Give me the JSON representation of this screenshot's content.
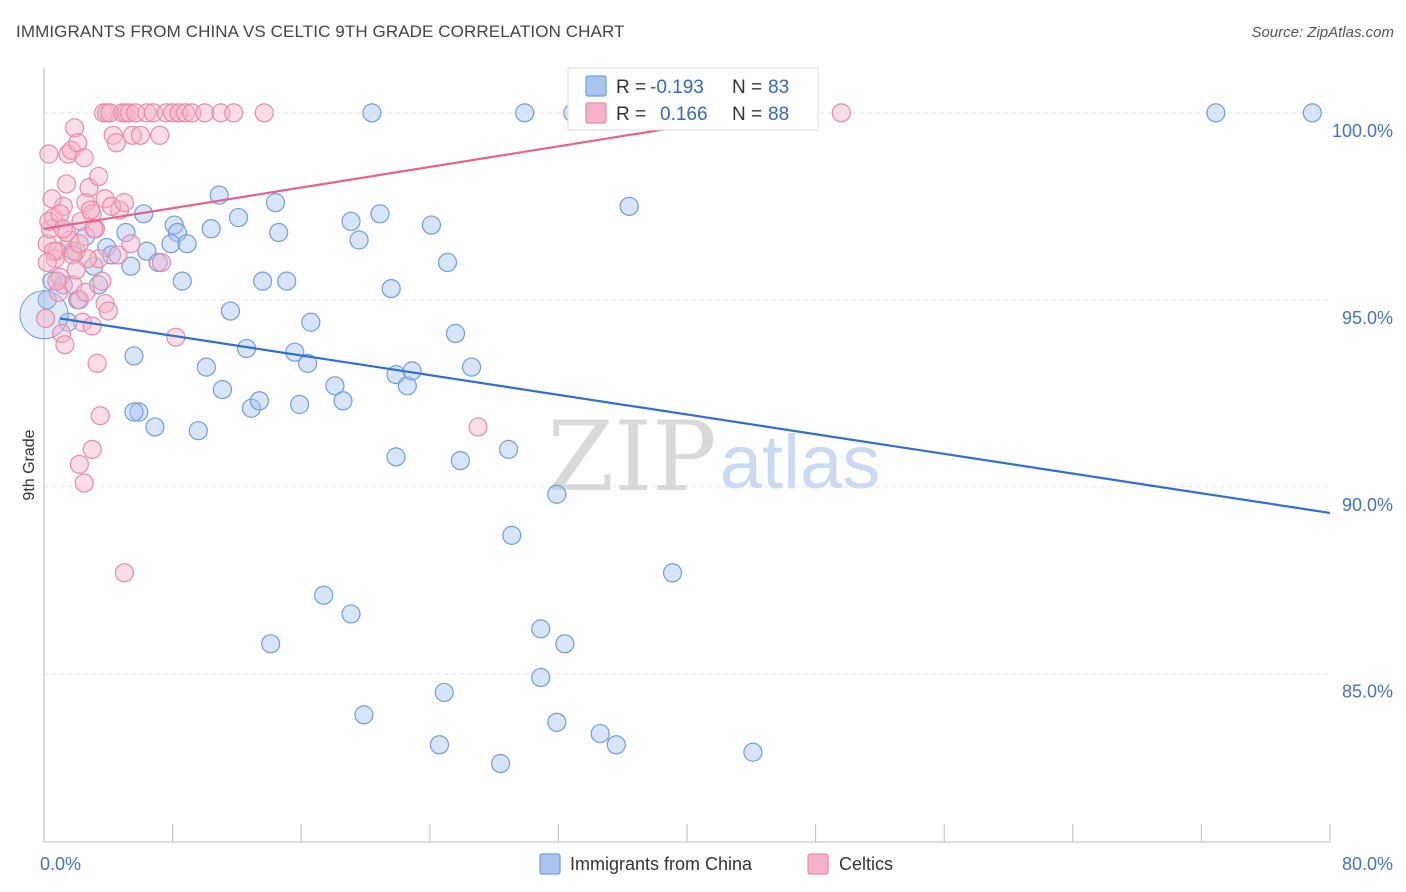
{
  "header": {
    "title": "IMMIGRANTS FROM CHINA VS CELTIC 9TH GRADE CORRELATION CHART",
    "source": "Source: ZipAtlas.com"
  },
  "watermark": {
    "zip": "ZIP",
    "atlas": "atlas"
  },
  "colors": {
    "china_fill": "#a8c4ef",
    "china_stroke": "#6f9de0",
    "china_line": "#2f6fd1",
    "celtic_fill": "#f4b3c8",
    "celtic_stroke": "#e98aa9",
    "celtic_line": "#e4628f",
    "tick_text": "#4472c4",
    "grid": "#e3e3e3"
  },
  "chart_data": {
    "type": "scatter",
    "title": "IMMIGRANTS FROM CHINA VS CELTIC 9TH GRADE CORRELATION CHART",
    "ylabel": "9th Grade",
    "xlim": [
      0,
      80
    ],
    "ylim": [
      80.5,
      101.2
    ],
    "x_ticks": [
      {
        "value": 0,
        "label": "0.0%"
      },
      {
        "value": 80,
        "label": "80.0%"
      }
    ],
    "x_minor_ticks": [
      8,
      16,
      24,
      32,
      40,
      48,
      56,
      64,
      72,
      80
    ],
    "y_ticks": [
      {
        "value": 100,
        "label": "100.0%"
      },
      {
        "value": 95,
        "label": "95.0%"
      },
      {
        "value": 90,
        "label": "90.0%"
      },
      {
        "value": 85,
        "label": "85.0%"
      }
    ],
    "grid": true,
    "legend": {
      "placement": "top-center",
      "rows": [
        {
          "r_label": "R =",
          "r_value": "-0.193",
          "n_label": "N =",
          "n_value": "83"
        },
        {
          "r_label": "R =",
          "r_value": "0.166",
          "n_label": "N =",
          "n_value": "88"
        }
      ]
    },
    "series": [
      {
        "name": "Immigrants from China",
        "trend": {
          "x": [
            1.0,
            80.0
          ],
          "y": [
            94.5,
            89.3
          ]
        },
        "points": [
          [
            0.5,
            95.5
          ],
          [
            1.2,
            95.4
          ],
          [
            1.5,
            94.4
          ],
          [
            2.6,
            96.7
          ],
          [
            3.1,
            95.9
          ],
          [
            3.4,
            95.4
          ],
          [
            3.9,
            96.4
          ],
          [
            4.2,
            96.2
          ],
          [
            5.1,
            96.8
          ],
          [
            5.4,
            95.9
          ],
          [
            6.2,
            97.3
          ],
          [
            5.9,
            92.0
          ],
          [
            5.6,
            92.0
          ],
          [
            6.4,
            96.3
          ],
          [
            5.6,
            93.5
          ],
          [
            6.9,
            91.6
          ],
          [
            7.1,
            96.0
          ],
          [
            8.1,
            97.0
          ],
          [
            8.3,
            96.8
          ],
          [
            8.6,
            95.5
          ],
          [
            7.9,
            96.5
          ],
          [
            8.9,
            96.5
          ],
          [
            9.6,
            91.5
          ],
          [
            10.1,
            93.2
          ],
          [
            10.4,
            96.9
          ],
          [
            11.1,
            92.6
          ],
          [
            10.9,
            97.8
          ],
          [
            11.6,
            94.7
          ],
          [
            12.1,
            97.2
          ],
          [
            12.6,
            93.7
          ],
          [
            12.9,
            92.1
          ],
          [
            13.4,
            92.3
          ],
          [
            13.6,
            95.5
          ],
          [
            14.4,
            97.6
          ],
          [
            14.6,
            96.8
          ],
          [
            15.1,
            95.5
          ],
          [
            15.6,
            93.6
          ],
          [
            15.9,
            92.2
          ],
          [
            16.4,
            93.3
          ],
          [
            16.6,
            94.4
          ],
          [
            18.1,
            92.7
          ],
          [
            18.6,
            92.3
          ],
          [
            19.1,
            97.1
          ],
          [
            19.6,
            96.6
          ],
          [
            20.9,
            97.3
          ],
          [
            21.6,
            95.3
          ],
          [
            21.9,
            93.0
          ],
          [
            22.6,
            92.7
          ],
          [
            22.9,
            93.1
          ],
          [
            24.1,
            97.0
          ],
          [
            25.1,
            96.0
          ],
          [
            25.6,
            94.1
          ],
          [
            26.6,
            93.2
          ],
          [
            20.4,
            100.0
          ],
          [
            29.9,
            100.0
          ],
          [
            32.9,
            100.0
          ],
          [
            36.4,
            97.5
          ],
          [
            38.4,
            100.0
          ],
          [
            72.9,
            100.0
          ],
          [
            78.9,
            100.0
          ],
          [
            21.9,
            90.8
          ],
          [
            25.9,
            90.7
          ],
          [
            28.9,
            91.0
          ],
          [
            31.9,
            89.8
          ],
          [
            29.1,
            88.7
          ],
          [
            39.1,
            87.7
          ],
          [
            17.4,
            87.1
          ],
          [
            19.1,
            86.6
          ],
          [
            30.9,
            86.2
          ],
          [
            32.4,
            85.8
          ],
          [
            14.1,
            85.8
          ],
          [
            30.9,
            84.9
          ],
          [
            24.9,
            84.5
          ],
          [
            19.9,
            83.9
          ],
          [
            24.6,
            83.1
          ],
          [
            28.4,
            82.6
          ],
          [
            31.9,
            83.7
          ],
          [
            34.6,
            83.4
          ],
          [
            35.6,
            83.1
          ],
          [
            44.1,
            82.9
          ],
          [
            0.2,
            95.0
          ],
          [
            1.8,
            96.3
          ],
          [
            2.1,
            95.0
          ]
        ]
      },
      {
        "name": "Celtics",
        "trend": {
          "x": [
            0.0,
            45.0
          ],
          "y": [
            96.9,
            100.0
          ]
        },
        "points": [
          [
            0.2,
            96.5
          ],
          [
            0.4,
            96.9
          ],
          [
            0.6,
            97.2
          ],
          [
            0.8,
            96.3
          ],
          [
            1.0,
            95.6
          ],
          [
            1.2,
            97.5
          ],
          [
            1.4,
            98.1
          ],
          [
            1.6,
            96.6
          ],
          [
            1.8,
            95.4
          ],
          [
            2.0,
            96.3
          ],
          [
            2.2,
            95.0
          ],
          [
            2.4,
            94.4
          ],
          [
            2.6,
            97.6
          ],
          [
            2.8,
            98.0
          ],
          [
            3.0,
            97.3
          ],
          [
            3.2,
            96.9
          ],
          [
            3.4,
            96.1
          ],
          [
            3.6,
            95.5
          ],
          [
            3.8,
            94.9
          ],
          [
            4.0,
            94.7
          ],
          [
            0.3,
            98.9
          ],
          [
            0.5,
            97.7
          ],
          [
            0.7,
            96.1
          ],
          [
            0.9,
            95.2
          ],
          [
            1.1,
            94.1
          ],
          [
            1.3,
            93.8
          ],
          [
            1.5,
            98.9
          ],
          [
            1.7,
            99.0
          ],
          [
            1.9,
            99.6
          ],
          [
            2.1,
            99.2
          ],
          [
            2.3,
            97.1
          ],
          [
            2.5,
            98.8
          ],
          [
            2.7,
            96.1
          ],
          [
            2.9,
            97.4
          ],
          [
            3.1,
            96.9
          ],
          [
            3.3,
            93.3
          ],
          [
            3.5,
            91.9
          ],
          [
            3.7,
            100.0
          ],
          [
            3.9,
            100.0
          ],
          [
            4.1,
            100.0
          ],
          [
            4.3,
            99.4
          ],
          [
            4.5,
            99.2
          ],
          [
            4.7,
            97.4
          ],
          [
            4.9,
            100.0
          ],
          [
            5.1,
            100.0
          ],
          [
            5.3,
            100.0
          ],
          [
            5.5,
            99.4
          ],
          [
            5.7,
            100.0
          ],
          [
            6.0,
            99.4
          ],
          [
            6.4,
            100.0
          ],
          [
            6.8,
            100.0
          ],
          [
            7.2,
            99.4
          ],
          [
            7.6,
            100.0
          ],
          [
            8.0,
            100.0
          ],
          [
            8.4,
            100.0
          ],
          [
            8.8,
            100.0
          ],
          [
            9.2,
            100.0
          ],
          [
            10.0,
            100.0
          ],
          [
            11.0,
            100.0
          ],
          [
            11.8,
            100.0
          ],
          [
            13.7,
            100.0
          ],
          [
            49.6,
            100.0
          ],
          [
            5.0,
            87.7
          ],
          [
            2.2,
            90.6
          ],
          [
            2.5,
            90.1
          ],
          [
            3.0,
            91.0
          ],
          [
            8.2,
            94.0
          ],
          [
            7.3,
            96.0
          ],
          [
            27.0,
            91.6
          ],
          [
            0.1,
            94.5
          ],
          [
            0.3,
            97.1
          ],
          [
            0.6,
            96.3
          ],
          [
            1.0,
            97.3
          ],
          [
            1.4,
            96.8
          ],
          [
            1.8,
            96.2
          ],
          [
            2.2,
            96.5
          ],
          [
            2.6,
            95.2
          ],
          [
            3.0,
            94.3
          ],
          [
            3.4,
            98.3
          ],
          [
            3.8,
            97.7
          ],
          [
            4.2,
            97.5
          ],
          [
            4.6,
            96.2
          ],
          [
            5.0,
            97.6
          ],
          [
            5.4,
            96.5
          ],
          [
            0.2,
            96.0
          ],
          [
            0.8,
            95.5
          ],
          [
            1.2,
            96.9
          ],
          [
            2.0,
            95.8
          ]
        ]
      }
    ]
  },
  "bottom_legend": {
    "items": [
      {
        "label": "Immigrants from China"
      },
      {
        "label": "Celtics"
      }
    ]
  }
}
